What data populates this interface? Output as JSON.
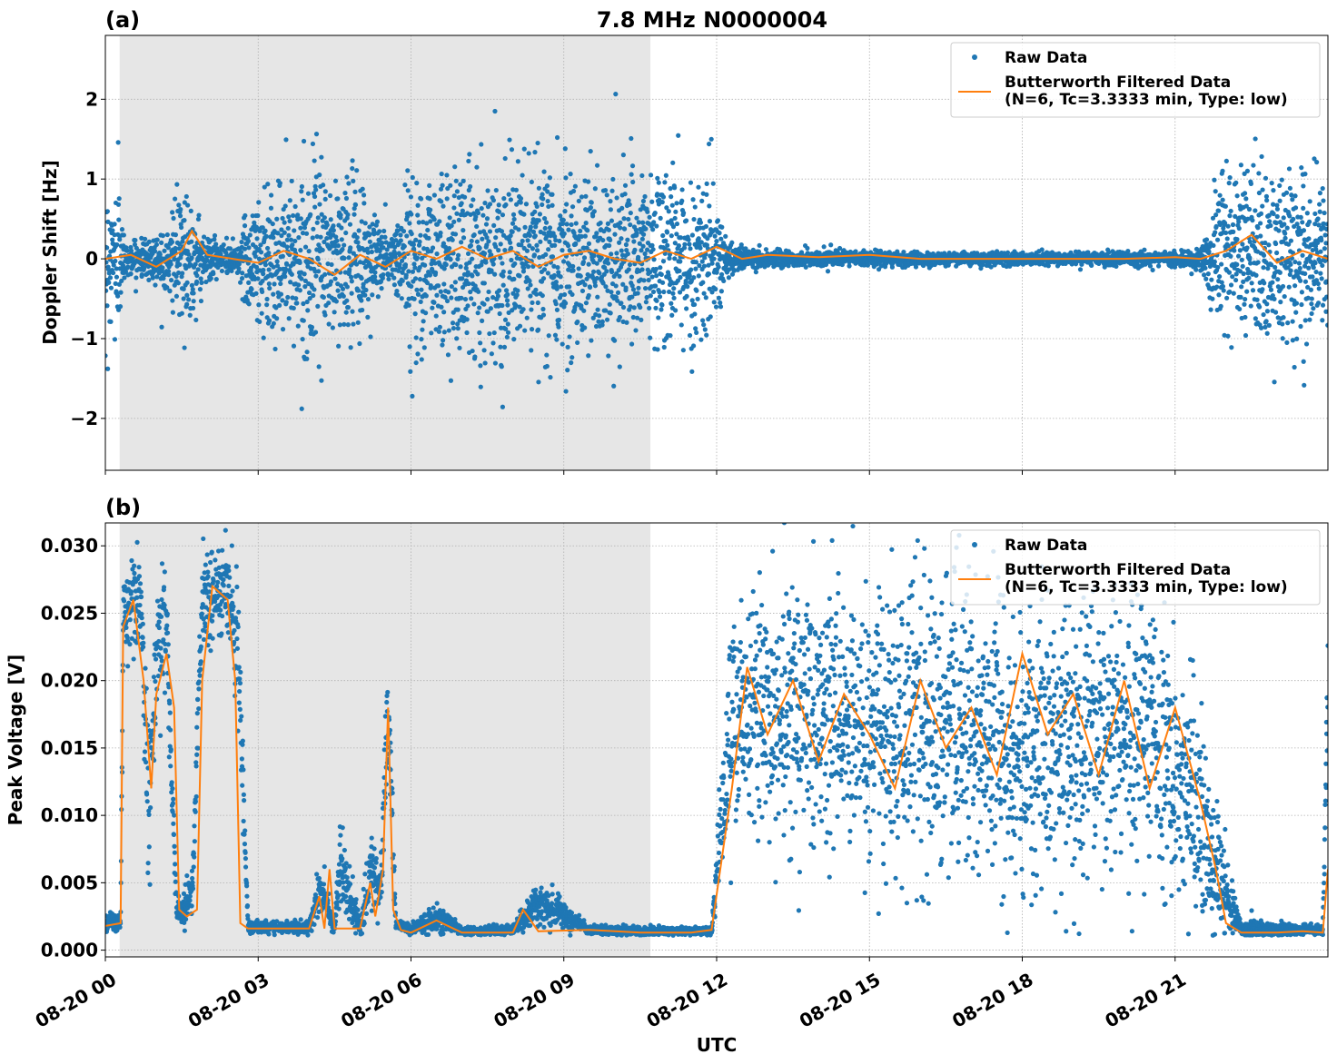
{
  "figure": {
    "title": "7.8 MHz N0000004",
    "xlabel": "UTC",
    "shading_color": "#e6e6e6",
    "raw_color": "#1f77b4",
    "filtered_color": "#ff7f0e"
  },
  "chart_data": [
    {
      "type": "scatter",
      "panel_label": "(a)",
      "ylabel": "Doppler Shift [Hz]",
      "xlim": [
        "08-20 00:00",
        "08-20 24:00"
      ],
      "ylim": [
        -2.65,
        2.8
      ],
      "x_ticks": [
        "08-20 00",
        "08-20 03",
        "08-20 06",
        "08-20 09",
        "08-20 12",
        "08-20 15",
        "08-20 18",
        "08-20 21"
      ],
      "x_tick_values": [
        0,
        3,
        6,
        9,
        12,
        15,
        18,
        21
      ],
      "x_tick_labels_shown": false,
      "y_ticks": [
        -2,
        -1,
        0,
        1,
        2
      ],
      "y_tick_labels": [
        "−2",
        "−1",
        "0",
        "1",
        "2"
      ],
      "grid": true,
      "legend_position": "upper-right",
      "shaded_region_utc_hours": [
        0.28,
        10.7
      ],
      "series": [
        {
          "name": "Raw Data",
          "kind": "scatter",
          "envelope_utc_hours": [
            0,
            0.25,
            0.4,
            0.7,
            1.0,
            1.3,
            1.6,
            2.0,
            2.3,
            2.6,
            2.9,
            3.5,
            4.0,
            4.5,
            5.0,
            5.6,
            6.0,
            7.0,
            8.0,
            9.0,
            10.0,
            11.0,
            11.9,
            12.2,
            13.0,
            15.0,
            17.0,
            19.0,
            21.0,
            21.5,
            21.9,
            22.3,
            23.0,
            24.0
          ],
          "envelope_spread_hz": [
            0.8,
            0.9,
            0.15,
            0.2,
            0.3,
            0.5,
            0.8,
            0.25,
            0.2,
            0.15,
            0.85,
            0.85,
            0.9,
            0.95,
            0.9,
            0.25,
            1.0,
            1.05,
            1.05,
            1.05,
            1.0,
            1.0,
            0.95,
            0.15,
            0.1,
            0.08,
            0.07,
            0.07,
            0.08,
            0.12,
            0.95,
            1.05,
            0.95,
            0.9
          ]
        },
        {
          "name": "Butterworth Filtered Data\n(N=6, Tc=3.3333 min, Type: low)",
          "kind": "line",
          "x_utc_hours": [
            0,
            0.5,
            1.0,
            1.5,
            1.7,
            2.0,
            2.5,
            3.0,
            3.5,
            4.0,
            4.5,
            5.0,
            5.5,
            6.0,
            6.5,
            7.0,
            7.5,
            8.0,
            8.5,
            9.0,
            9.5,
            10.0,
            10.5,
            11.0,
            11.5,
            12.0,
            12.5,
            13.0,
            14.0,
            15.0,
            16.0,
            17.0,
            18.0,
            19.0,
            20.0,
            21.0,
            21.5,
            22.0,
            22.5,
            23.0,
            23.5,
            24.0
          ],
          "y": [
            0.0,
            0.05,
            -0.1,
            0.1,
            0.35,
            0.05,
            0.0,
            -0.05,
            0.1,
            0.0,
            -0.2,
            0.05,
            -0.1,
            0.1,
            0.0,
            0.15,
            0.0,
            0.1,
            -0.1,
            0.05,
            0.1,
            0.0,
            -0.05,
            0.1,
            0.0,
            0.15,
            0.0,
            0.05,
            0.02,
            0.05,
            0.0,
            0.0,
            0.0,
            0.0,
            0.0,
            0.02,
            0.0,
            0.1,
            0.3,
            -0.05,
            0.1,
            0.0
          ]
        }
      ]
    },
    {
      "type": "scatter",
      "panel_label": "(b)",
      "ylabel": "Peak Voltage [V]",
      "xlim": [
        "08-20 00:00",
        "08-20 24:00"
      ],
      "ylim": [
        -0.0005,
        0.0317
      ],
      "x_ticks": [
        "08-20 00",
        "08-20 03",
        "08-20 06",
        "08-20 09",
        "08-20 12",
        "08-20 15",
        "08-20 18",
        "08-20 21"
      ],
      "x_tick_values": [
        0,
        3,
        6,
        9,
        12,
        15,
        18,
        21
      ],
      "x_tick_labels_shown": true,
      "y_ticks": [
        0.0,
        0.005,
        0.01,
        0.015,
        0.02,
        0.025,
        0.03
      ],
      "y_tick_labels": [
        "0.000",
        "0.005",
        "0.010",
        "0.015",
        "0.020",
        "0.025",
        "0.030"
      ],
      "grid": true,
      "legend_position": "upper-right",
      "shaded_region_utc_hours": [
        0.28,
        10.7
      ],
      "series": [
        {
          "name": "Raw Data",
          "kind": "scatter",
          "envelope_utc_hours": [
            0,
            0.3,
            0.35,
            0.7,
            0.85,
            1.0,
            1.2,
            1.4,
            1.5,
            1.7,
            1.9,
            2.4,
            2.6,
            2.8,
            3.5,
            4.0,
            4.2,
            4.5,
            4.6,
            5.0,
            5.2,
            5.4,
            5.55,
            5.7,
            6.0,
            6.5,
            7.0,
            8.0,
            8.5,
            9.5,
            10.5,
            11.5,
            11.9,
            12.3,
            13.0,
            15.0,
            17.0,
            18.0,
            19.5,
            20.5,
            21.3,
            21.8,
            22.3,
            22.5,
            23.0,
            23.9,
            24.0
          ],
          "envelope_center_v": [
            0.002,
            0.002,
            0.025,
            0.026,
            0.01,
            0.022,
            0.024,
            0.003,
            0.003,
            0.004,
            0.026,
            0.027,
            0.023,
            0.0018,
            0.0017,
            0.0017,
            0.0045,
            0.0017,
            0.0065,
            0.0017,
            0.0055,
            0.0045,
            0.018,
            0.002,
            0.0015,
            0.0025,
            0.0014,
            0.0015,
            0.0035,
            0.0015,
            0.0014,
            0.0014,
            0.0014,
            0.018,
            0.018,
            0.017,
            0.016,
            0.015,
            0.017,
            0.016,
            0.012,
            0.006,
            0.0015,
            0.0015,
            0.0015,
            0.0015,
            0.02
          ],
          "envelope_spread_v": [
            0.0005,
            0.0005,
            0.003,
            0.003,
            0.005,
            0.005,
            0.005,
            0.001,
            0.001,
            0.002,
            0.003,
            0.003,
            0.004,
            0.0004,
            0.0004,
            0.0004,
            0.002,
            0.0004,
            0.003,
            0.0004,
            0.003,
            0.002,
            0.005,
            0.0004,
            0.0003,
            0.001,
            0.0003,
            0.0003,
            0.0015,
            0.0003,
            0.0003,
            0.0003,
            0.0003,
            0.007,
            0.009,
            0.009,
            0.009,
            0.009,
            0.009,
            0.009,
            0.008,
            0.005,
            0.0004,
            0.0008,
            0.0004,
            0.0004,
            0.007
          ]
        },
        {
          "name": "Butterworth Filtered Data\n(N=6, Tc=3.3333 min, Type: low)",
          "kind": "line",
          "x_utc_hours": [
            0,
            0.3,
            0.35,
            0.55,
            0.75,
            0.9,
            1.0,
            1.2,
            1.35,
            1.45,
            1.6,
            1.8,
            1.9,
            2.1,
            2.4,
            2.55,
            2.65,
            2.8,
            3.5,
            4.0,
            4.2,
            4.3,
            4.4,
            4.5,
            4.6,
            5.0,
            5.2,
            5.3,
            5.45,
            5.55,
            5.65,
            5.8,
            6.0,
            6.5,
            7.0,
            8.0,
            8.2,
            8.5,
            9.5,
            10.5,
            11.5,
            11.9,
            12.3,
            12.6,
            13.0,
            13.5,
            14.0,
            14.5,
            15.0,
            15.5,
            16.0,
            16.5,
            17.0,
            17.5,
            18.0,
            18.5,
            19.0,
            19.5,
            20.0,
            20.5,
            21.0,
            21.5,
            21.8,
            22.0,
            22.3,
            22.8,
            23.0,
            23.5,
            23.9,
            24.0
          ],
          "y": [
            0.0018,
            0.002,
            0.024,
            0.026,
            0.02,
            0.012,
            0.019,
            0.022,
            0.018,
            0.003,
            0.0025,
            0.003,
            0.02,
            0.027,
            0.026,
            0.02,
            0.002,
            0.0016,
            0.0016,
            0.0016,
            0.004,
            0.0016,
            0.006,
            0.0016,
            0.0016,
            0.0016,
            0.005,
            0.0025,
            0.006,
            0.018,
            0.003,
            0.0015,
            0.0013,
            0.0022,
            0.0013,
            0.0013,
            0.003,
            0.0014,
            0.0015,
            0.0013,
            0.0013,
            0.0015,
            0.012,
            0.021,
            0.016,
            0.02,
            0.014,
            0.019,
            0.016,
            0.012,
            0.02,
            0.015,
            0.018,
            0.013,
            0.022,
            0.016,
            0.019,
            0.013,
            0.02,
            0.012,
            0.018,
            0.011,
            0.006,
            0.002,
            0.0013,
            0.0013,
            0.0013,
            0.0014,
            0.0013,
            0.006
          ]
        }
      ]
    }
  ]
}
